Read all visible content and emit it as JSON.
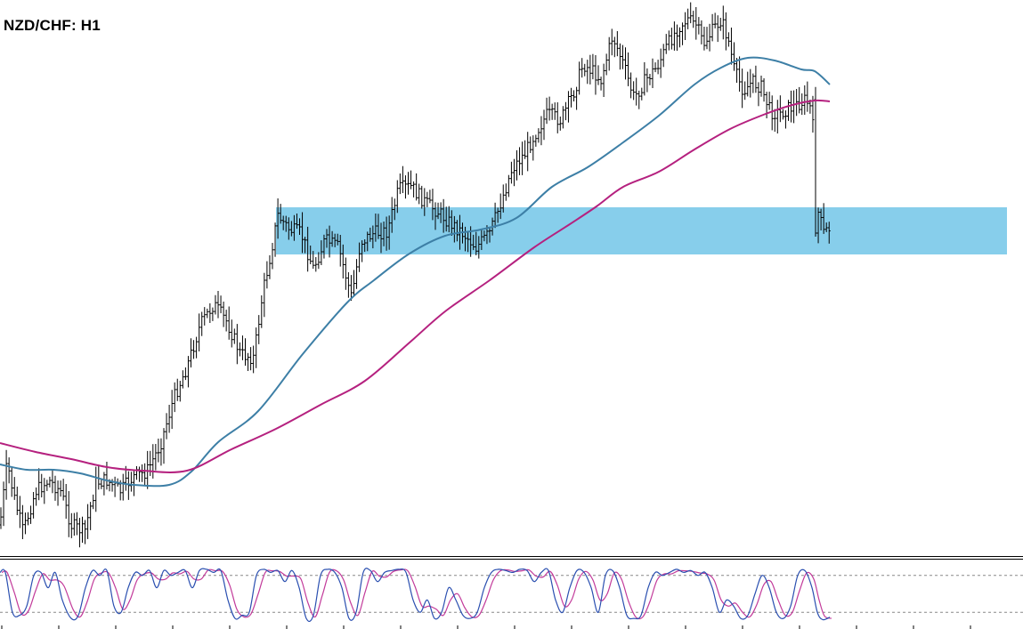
{
  "chart_data": {
    "type": "line",
    "title": "NZD/CHF: H1",
    "price_panel": {
      "bar_style": "ohlc",
      "bar_color": "#000000",
      "bars_close_path": [
        [
          0,
          590
        ],
        [
          8,
          520
        ],
        [
          16,
          560
        ],
        [
          26,
          598
        ],
        [
          40,
          552
        ],
        [
          55,
          540
        ],
        [
          68,
          552
        ],
        [
          80,
          590
        ],
        [
          95,
          598
        ],
        [
          108,
          542
        ],
        [
          120,
          540
        ],
        [
          135,
          552
        ],
        [
          150,
          536
        ],
        [
          165,
          530
        ],
        [
          180,
          500
        ],
        [
          195,
          448
        ],
        [
          210,
          412
        ],
        [
          225,
          365
        ],
        [
          240,
          342
        ],
        [
          255,
          362
        ],
        [
          270,
          398
        ],
        [
          285,
          402
        ],
        [
          295,
          330
        ],
        [
          305,
          280
        ],
        [
          312,
          242
        ],
        [
          325,
          258
        ],
        [
          338,
          262
        ],
        [
          352,
          302
        ],
        [
          365,
          270
        ],
        [
          380,
          278
        ],
        [
          395,
          335
        ],
        [
          405,
          272
        ],
        [
          420,
          262
        ],
        [
          435,
          260
        ],
        [
          448,
          212
        ],
        [
          462,
          210
        ],
        [
          478,
          228
        ],
        [
          492,
          238
        ],
        [
          505,
          250
        ],
        [
          520,
          262
        ],
        [
          535,
          278
        ],
        [
          550,
          262
        ],
        [
          560,
          235
        ],
        [
          575,
          190
        ],
        [
          590,
          172
        ],
        [
          600,
          152
        ],
        [
          615,
          128
        ],
        [
          630,
          135
        ],
        [
          645,
          102
        ],
        [
          655,
          72
        ],
        [
          668,
          82
        ],
        [
          675,
          90
        ],
        [
          688,
          40
        ],
        [
          700,
          72
        ],
        [
          712,
          110
        ],
        [
          725,
          90
        ],
        [
          738,
          75
        ],
        [
          750,
          50
        ],
        [
          762,
          30
        ],
        [
          772,
          22
        ],
        [
          782,
          28
        ],
        [
          790,
          50
        ],
        [
          800,
          35
        ],
        [
          810,
          22
        ],
        [
          818,
          45
        ],
        [
          825,
          80
        ],
        [
          835,
          102
        ],
        [
          845,
          92
        ],
        [
          855,
          98
        ],
        [
          865,
          125
        ],
        [
          875,
          128
        ],
        [
          885,
          122
        ],
        [
          895,
          118
        ],
        [
          905,
          112
        ],
        [
          912,
          125
        ],
        [
          918,
          235
        ],
        [
          925,
          262
        ],
        [
          932,
          256
        ]
      ],
      "range_zone": {
        "color": "#87ceeb"
      },
      "moving_averages": [
        {
          "color": "#3d7fa6",
          "values": [
            [
              0,
              522
            ],
            [
              30,
              528
            ],
            [
              60,
              528
            ],
            [
              90,
              532
            ],
            [
              120,
              540
            ],
            [
              150,
              545
            ],
            [
              190,
              545
            ],
            [
              215,
              530
            ],
            [
              245,
              497
            ],
            [
              290,
              462
            ],
            [
              340,
              398
            ],
            [
              390,
              340
            ],
            [
              420,
              315
            ],
            [
              460,
              285
            ],
            [
              500,
              265
            ],
            [
              540,
              258
            ],
            [
              580,
              245
            ],
            [
              620,
              210
            ],
            [
              660,
              188
            ],
            [
              700,
              160
            ],
            [
              740,
              130
            ],
            [
              780,
              95
            ],
            [
              810,
              76
            ],
            [
              840,
              65
            ],
            [
              870,
              68
            ],
            [
              900,
              78
            ],
            [
              915,
              80
            ],
            [
              932,
              95
            ]
          ]
        },
        {
          "color": "#b5217f",
          "values": [
            [
              0,
              498
            ],
            [
              40,
              508
            ],
            [
              80,
              516
            ],
            [
              120,
              525
            ],
            [
              160,
              529
            ],
            [
              210,
              529
            ],
            [
              260,
              505
            ],
            [
              310,
              482
            ],
            [
              360,
              455
            ],
            [
              410,
              428
            ],
            [
              460,
              385
            ],
            [
              500,
              350
            ],
            [
              550,
              315
            ],
            [
              600,
              278
            ],
            [
              640,
              252
            ],
            [
              670,
              232
            ],
            [
              700,
              210
            ],
            [
              740,
              193
            ],
            [
              780,
              168
            ],
            [
              820,
              145
            ],
            [
              860,
              128
            ],
            [
              890,
              118
            ],
            [
              915,
              113
            ],
            [
              932,
              114
            ]
          ]
        }
      ]
    },
    "oscillator_panel": {
      "type": "stochastic",
      "main_color": "#2a4fb0",
      "signal_color": "#c23a9a",
      "levels": [
        80,
        20
      ],
      "ylim": [
        0,
        100
      ],
      "main_values": [
        [
          0,
          85
        ],
        [
          6,
          85
        ],
        [
          14,
          20
        ],
        [
          22,
          15
        ],
        [
          30,
          30
        ],
        [
          38,
          80
        ],
        [
          46,
          85
        ],
        [
          54,
          60
        ],
        [
          62,
          85
        ],
        [
          70,
          40
        ],
        [
          80,
          10
        ],
        [
          88,
          15
        ],
        [
          96,
          60
        ],
        [
          104,
          88
        ],
        [
          112,
          80
        ],
        [
          120,
          88
        ],
        [
          128,
          30
        ],
        [
          136,
          20
        ],
        [
          144,
          60
        ],
        [
          152,
          85
        ],
        [
          160,
          80
        ],
        [
          168,
          88
        ],
        [
          176,
          60
        ],
        [
          184,
          88
        ],
        [
          192,
          80
        ],
        [
          200,
          85
        ],
        [
          208,
          88
        ],
        [
          216,
          60
        ],
        [
          224,
          88
        ],
        [
          232,
          90
        ],
        [
          240,
          85
        ],
        [
          248,
          88
        ],
        [
          256,
          40
        ],
        [
          264,
          10
        ],
        [
          272,
          15
        ],
        [
          280,
          20
        ],
        [
          288,
          80
        ],
        [
          296,
          90
        ],
        [
          304,
          85
        ],
        [
          312,
          88
        ],
        [
          320,
          70
        ],
        [
          328,
          88
        ],
        [
          336,
          60
        ],
        [
          344,
          10
        ],
        [
          352,
          15
        ],
        [
          360,
          80
        ],
        [
          368,
          90
        ],
        [
          376,
          85
        ],
        [
          384,
          60
        ],
        [
          392,
          10
        ],
        [
          400,
          20
        ],
        [
          408,
          85
        ],
        [
          416,
          88
        ],
        [
          424,
          70
        ],
        [
          432,
          85
        ],
        [
          440,
          88
        ],
        [
          448,
          90
        ],
        [
          456,
          85
        ],
        [
          464,
          40
        ],
        [
          472,
          20
        ],
        [
          480,
          40
        ],
        [
          488,
          10
        ],
        [
          496,
          20
        ],
        [
          504,
          60
        ],
        [
          512,
          40
        ],
        [
          520,
          15
        ],
        [
          528,
          10
        ],
        [
          536,
          20
        ],
        [
          544,
          60
        ],
        [
          552,
          85
        ],
        [
          560,
          90
        ],
        [
          568,
          88
        ],
        [
          576,
          85
        ],
        [
          584,
          90
        ],
        [
          592,
          88
        ],
        [
          600,
          70
        ],
        [
          608,
          85
        ],
        [
          616,
          88
        ],
        [
          624,
          40
        ],
        [
          632,
          20
        ],
        [
          640,
          60
        ],
        [
          648,
          88
        ],
        [
          656,
          85
        ],
        [
          664,
          60
        ],
        [
          672,
          20
        ],
        [
          680,
          80
        ],
        [
          688,
          88
        ],
        [
          696,
          60
        ],
        [
          704,
          15
        ],
        [
          712,
          10
        ],
        [
          720,
          15
        ],
        [
          728,
          60
        ],
        [
          736,
          85
        ],
        [
          744,
          80
        ],
        [
          752,
          85
        ],
        [
          760,
          90
        ],
        [
          768,
          85
        ],
        [
          776,
          88
        ],
        [
          784,
          80
        ],
        [
          792,
          85
        ],
        [
          800,
          60
        ],
        [
          808,
          20
        ],
        [
          816,
          40
        ],
        [
          824,
          30
        ],
        [
          832,
          10
        ],
        [
          840,
          15
        ],
        [
          848,
          50
        ],
        [
          856,
          80
        ],
        [
          864,
          60
        ],
        [
          872,
          20
        ],
        [
          880,
          10
        ],
        [
          888,
          30
        ],
        [
          896,
          80
        ],
        [
          904,
          88
        ],
        [
          912,
          60
        ],
        [
          918,
          20
        ],
        [
          924,
          8
        ],
        [
          932,
          12
        ]
      ]
    }
  }
}
